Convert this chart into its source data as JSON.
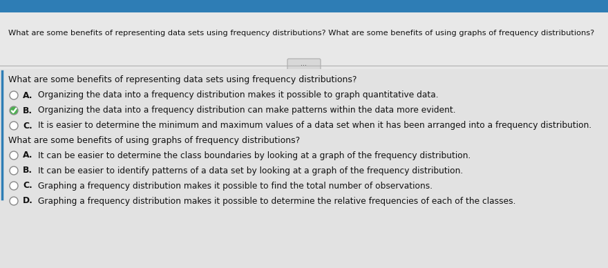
{
  "header_text": "What are some benefits of representing data sets using frequency distributions? What are some benefits of using graphs of frequency distributions?",
  "q1": "What are some benefits of representing data sets using frequency distributions?",
  "q2": "What are some benefits of using graphs of frequency distributions?",
  "q1_options": [
    [
      "A.  ",
      "Organizing the data into a frequency distribution makes it possible to graph quantitative data."
    ],
    [
      "B.  ",
      "Organizing the data into a frequency distribution can make patterns within the data more evident."
    ],
    [
      "C.  ",
      "It is easier to determine the minimum and maximum values of a data set when it has been arranged into a frequency distribution."
    ]
  ],
  "q2_options": [
    [
      "A.  ",
      "It can be easier to determine the class boundaries by looking at a graph of the frequency distribution."
    ],
    [
      "B.  ",
      "It can be easier to identify patterns of a data set by looking at a graph of the frequency distribution."
    ],
    [
      "C.  ",
      "Graphing a frequency distribution makes it possible to find the total number of observations."
    ],
    [
      "D.  ",
      "Graphing a frequency distribution makes it possible to determine the relative frequencies of each of the classes."
    ]
  ],
  "q1_checked": [
    false,
    true,
    false
  ],
  "q2_checked": [
    false,
    false,
    false,
    false
  ],
  "bg_top_blue": "#2e7db5",
  "bg_header_gray": "#e8e8e8",
  "bg_content": "#dcdcdc",
  "bg_inner": "#e2e2e2",
  "separator_color": "#b0b0b0",
  "text_dark": "#111111",
  "circle_edge": "#888888",
  "check_fill": "#4caf50",
  "check_mark": "#ffffff",
  "dots_bg": "#d8d8d8",
  "dots_border": "#aaaaaa"
}
